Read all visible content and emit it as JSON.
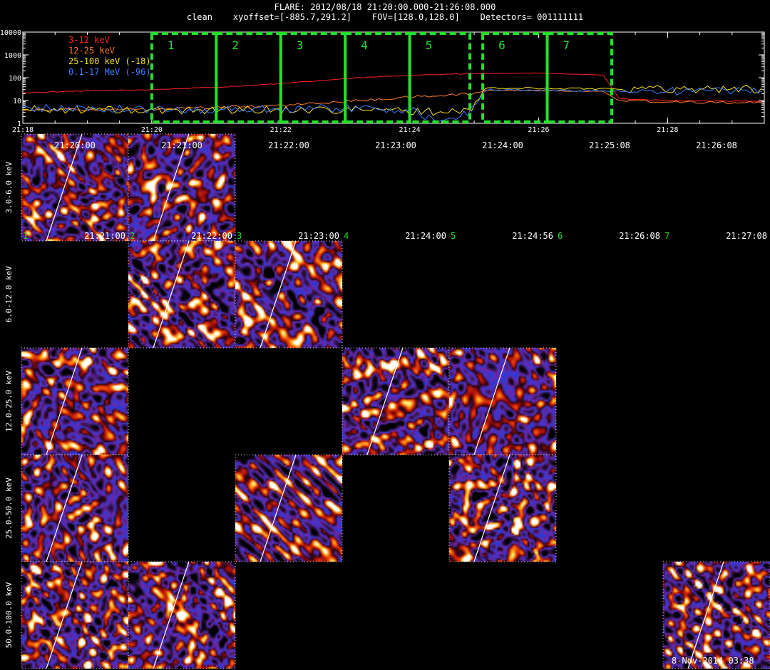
{
  "header": {
    "title": "FLARE: 2012/08/18 21:20:00.000-21:26:08.000",
    "subtitle": "clean    xyoffset=[-885.7,291.2]    FOV=[128.0,128.0]    Detectors= 001111111"
  },
  "chart_data": [
    {
      "type": "line",
      "x_range_minutes": [
        "21:18",
        "21:29:30"
      ],
      "x_ticks": [
        "21:18",
        "21:20",
        "21:22",
        "21:24",
        "21:26",
        "21:28"
      ],
      "y_scale": "log",
      "ylim": [
        1,
        10000
      ],
      "y_ticks": [
        "1",
        "10",
        "100",
        "1000",
        "10000"
      ],
      "legend": [
        {
          "label": "3-12 keV",
          "color": "#ff2020"
        },
        {
          "label": "12-25 keV",
          "color": "#ff7a20"
        },
        {
          "label": "25-100 keV (-18)",
          "color": "#f5e020"
        },
        {
          "label": "0.1-17 MeV (-96)",
          "color": "#3a7dff"
        }
      ],
      "series": [
        {
          "name": "3-12 keV",
          "color": "#ff2020",
          "x": [
            "21:18",
            "21:19",
            "21:20",
            "21:21",
            "21:22",
            "21:23",
            "21:24",
            "21:25",
            "21:26",
            "21:27:00",
            "21:27:15",
            "21:28",
            "21:29:30"
          ],
          "values": [
            22,
            26,
            30,
            38,
            55,
            90,
            130,
            150,
            160,
            130,
            12,
            10,
            9
          ]
        },
        {
          "name": "12-25 keV",
          "color": "#ff7a20",
          "x": [
            "21:18",
            "21:19",
            "21:20",
            "21:21",
            "21:22",
            "21:23",
            "21:24",
            "21:25",
            "21:25:10",
            "21:26",
            "21:27:00",
            "21:27:15",
            "21:28",
            "21:29:30"
          ],
          "values": [
            4,
            4,
            4,
            5,
            6,
            9,
            14,
            20,
            28,
            27,
            25,
            10,
            9,
            8
          ]
        },
        {
          "name": "25-100 keV (-18)",
          "color": "#f5e020",
          "x": [
            "21:18",
            "21:19",
            "21:20",
            "21:21",
            "21:22",
            "21:23",
            "21:24",
            "21:24:55",
            "21:25:10",
            "21:26",
            "21:27",
            "21:28",
            "21:29:30"
          ],
          "values": [
            4,
            4,
            3.5,
            4,
            4,
            4,
            3.5,
            3,
            35,
            34,
            33,
            32,
            32
          ]
        },
        {
          "name": "0.1-17 MeV (-96)",
          "color": "#3a7dff",
          "x": [
            "21:18",
            "21:19",
            "21:20",
            "21:21",
            "21:22",
            "21:23",
            "21:24",
            "21:24:30",
            "21:24:55",
            "21:25:10",
            "21:26",
            "21:27",
            "21:28",
            "21:29:30"
          ],
          "values": [
            4.5,
            4.5,
            4,
            4,
            4.5,
            4.5,
            4,
            1,
            3,
            30,
            28,
            26,
            26,
            26
          ]
        }
      ],
      "intervals": [
        {
          "label": "1",
          "start": "21:20:00",
          "end": "21:21:00"
        },
        {
          "label": "2",
          "start": "21:21:00",
          "end": "21:22:00"
        },
        {
          "label": "3",
          "start": "21:22:00",
          "end": "21:23:00"
        },
        {
          "label": "4",
          "start": "21:23:00",
          "end": "21:24:00"
        },
        {
          "label": "5",
          "start": "21:24:00",
          "end": "21:24:56"
        },
        {
          "label": "6",
          "start": "21:25:08",
          "end": "21:26:08"
        },
        {
          "label": "7",
          "start": "21:26:08",
          "end": "21:27:08"
        }
      ]
    },
    {
      "type": "heatmap",
      "energy_bands": [
        "3.0-6.0 keV",
        "6.0-12.0 keV",
        "12.0-25.0 keV",
        "25.0-50.0 keV",
        "50.0-100.0 keV"
      ],
      "time_bins": [
        {
          "number": "1",
          "start": "21:20:00",
          "end": "21:21:00"
        },
        {
          "number": "2",
          "start": "21:21:00",
          "end": "21:22:00"
        },
        {
          "number": "3",
          "start": "21:22:00",
          "end": "21:23:00"
        },
        {
          "number": "4",
          "start": "21:23:00",
          "end": "21:24:00"
        },
        {
          "number": "5",
          "start": "21:24:00",
          "end": "21:24:56"
        },
        {
          "number": "6",
          "start": "21:25:08",
          "end": "21:26:08"
        },
        {
          "number": "7",
          "start": "21:26:08",
          "end": "21:27:08"
        }
      ],
      "images_present": [
        {
          "band": 0,
          "time_bin": 0
        },
        {
          "band": 0,
          "time_bin": 1
        },
        {
          "band": 1,
          "time_bin": 1
        },
        {
          "band": 1,
          "time_bin": 2
        },
        {
          "band": 2,
          "time_bin": 0
        },
        {
          "band": 2,
          "time_bin": 3
        },
        {
          "band": 2,
          "time_bin": 4
        },
        {
          "band": 3,
          "time_bin": 0
        },
        {
          "band": 3,
          "time_bin": 2
        },
        {
          "band": 3,
          "time_bin": 4
        },
        {
          "band": 4,
          "time_bin": 0
        },
        {
          "band": 4,
          "time_bin": 1
        },
        {
          "band": 4,
          "time_bin": 6
        }
      ]
    }
  ],
  "footer": {
    "timestamp": "8-Nov-2014 03:38"
  }
}
